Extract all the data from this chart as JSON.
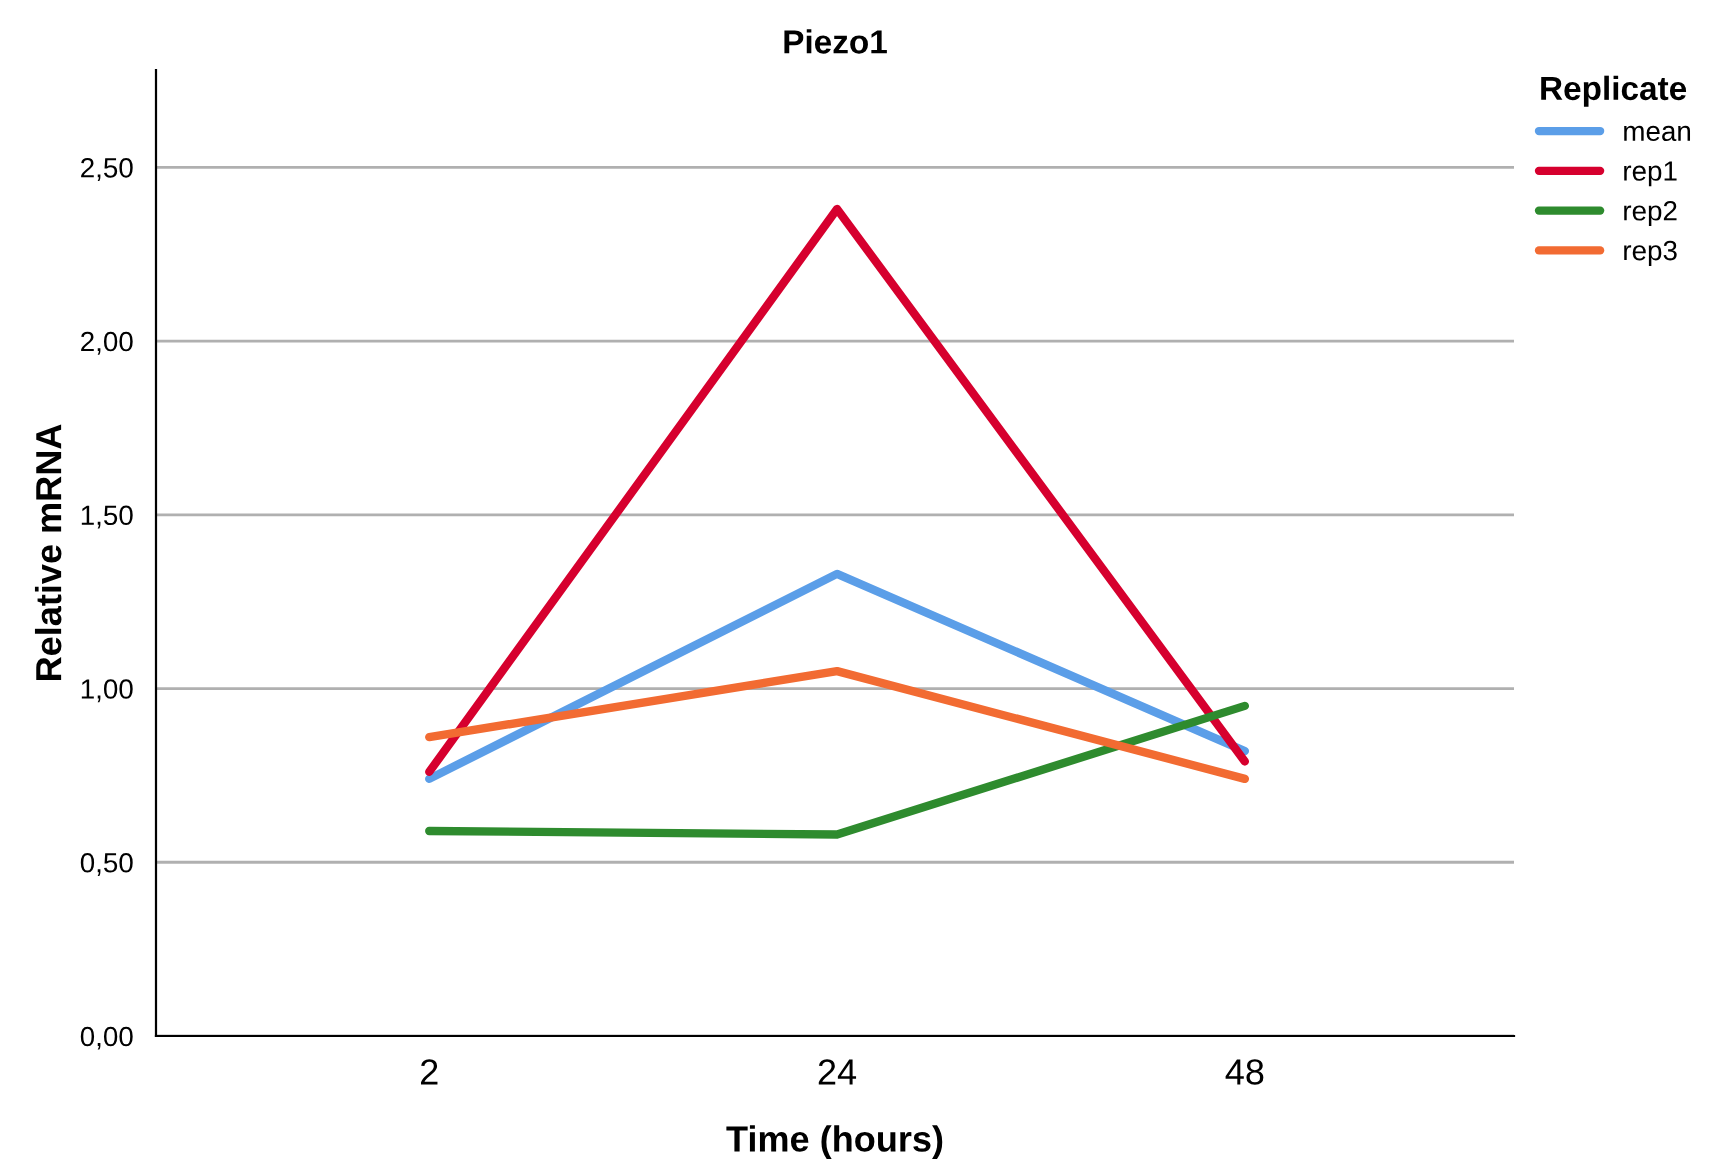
{
  "chart_data": {
    "type": "line",
    "title": "Piezo1",
    "xlabel": "Time (hours)",
    "ylabel": "Relative mRNA",
    "legend_title": "Replicate",
    "categories": [
      "2",
      "24",
      "48"
    ],
    "series": [
      {
        "name": "mean",
        "color": "#5b9ee8",
        "values": [
          0.74,
          1.33,
          0.82
        ]
      },
      {
        "name": "rep1",
        "color": "#d6002e",
        "values": [
          0.76,
          2.38,
          0.79
        ]
      },
      {
        "name": "rep2",
        "color": "#2e8b2e",
        "values": [
          0.59,
          0.58,
          0.95
        ]
      },
      {
        "name": "rep3",
        "color": "#f26b32",
        "values": [
          0.86,
          1.05,
          0.74
        ]
      }
    ],
    "ylim": [
      0,
      2.78
    ],
    "yticks": [
      {
        "value": 0,
        "label": "0,00"
      },
      {
        "value": 0.5,
        "label": "0,50"
      },
      {
        "value": 1.0,
        "label": "1,00"
      },
      {
        "value": 1.5,
        "label": "1,50"
      },
      {
        "value": 2.0,
        "label": "2,00"
      },
      {
        "value": 2.5,
        "label": "2,50"
      }
    ],
    "grid": "y",
    "legend": "top right",
    "marker": "none",
    "line_style": "solid"
  }
}
